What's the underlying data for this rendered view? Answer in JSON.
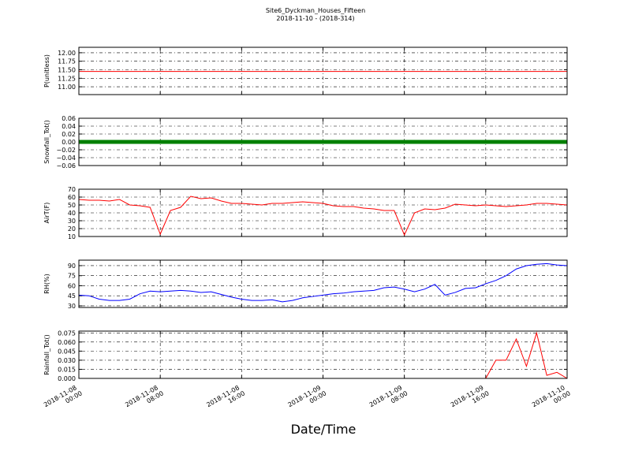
{
  "chart_data": [
    {
      "type": "line",
      "title": "Site6_Dyckman_Houses_Fifteen",
      "subtitle": "2018-11-10 - (2018-314)",
      "ylabel": "P(unitless)",
      "grid": true,
      "xlim": [
        "2018-11-08 00:00",
        "2018-11-10 00:00"
      ],
      "ylim": [
        10.77,
        12.16
      ],
      "yticks": [
        {
          "value": 11,
          "label": "11.00"
        },
        {
          "value": 11.25,
          "label": "11.25"
        },
        {
          "value": 11.5,
          "label": "11.50"
        },
        {
          "value": 11.75,
          "label": "11.75"
        },
        {
          "value": 12,
          "label": "12.00"
        }
      ],
      "x": [
        "2018-11-08 00:00",
        "2018-11-08 01:00",
        "2018-11-08 02:00",
        "2018-11-08 03:00",
        "2018-11-08 04:00",
        "2018-11-08 05:00",
        "2018-11-08 06:00",
        "2018-11-08 07:00",
        "2018-11-08 08:00",
        "2018-11-08 09:00",
        "2018-11-08 10:00",
        "2018-11-08 11:00",
        "2018-11-08 12:00",
        "2018-11-08 13:00",
        "2018-11-08 14:00",
        "2018-11-08 15:00",
        "2018-11-08 16:00",
        "2018-11-08 17:00",
        "2018-11-08 18:00",
        "2018-11-08 19:00",
        "2018-11-08 20:00",
        "2018-11-08 21:00",
        "2018-11-08 22:00",
        "2018-11-08 23:00",
        "2018-11-09 00:00",
        "2018-11-09 01:00",
        "2018-11-09 02:00",
        "2018-11-09 03:00",
        "2018-11-09 04:00",
        "2018-11-09 05:00",
        "2018-11-09 06:00",
        "2018-11-09 07:00",
        "2018-11-09 08:00",
        "2018-11-09 09:00",
        "2018-11-09 10:00",
        "2018-11-09 11:00",
        "2018-11-09 12:00",
        "2018-11-09 13:00",
        "2018-11-09 14:00",
        "2018-11-09 15:00",
        "2018-11-09 16:00",
        "2018-11-09 17:00",
        "2018-11-09 18:00",
        "2018-11-09 19:00",
        "2018-11-09 20:00",
        "2018-11-09 21:00",
        "2018-11-09 22:00",
        "2018-11-09 23:00",
        "2018-11-10 00:00"
      ],
      "series": [
        {
          "color": "#ff0000",
          "width": 1,
          "values": [
            11.45,
            11.45,
            11.45,
            11.45,
            11.45,
            11.45,
            11.45,
            11.45,
            11.45,
            11.45,
            11.45,
            11.45,
            11.45,
            11.45,
            11.45,
            11.45,
            11.45,
            11.45,
            11.45,
            11.45,
            11.45,
            11.45,
            11.45,
            11.45,
            11.45,
            11.45,
            11.45,
            11.45,
            11.45,
            11.45,
            11.45,
            11.45,
            11.45,
            11.45,
            11.45,
            11.45,
            11.45,
            11.45,
            11.45,
            11.45,
            11.45,
            11.45,
            11.45,
            11.45,
            11.45,
            11.45,
            11.45,
            11.45,
            11.45
          ]
        }
      ]
    },
    {
      "type": "line",
      "ylabel": "Snowfall_Tot()",
      "grid": true,
      "xlim": [
        "2018-11-08 00:00",
        "2018-11-10 00:00"
      ],
      "ylim": [
        -0.06,
        0.06
      ],
      "yticks": [
        {
          "value": -0.06,
          "label": "−0.06"
        },
        {
          "value": -0.04,
          "label": "−0.04"
        },
        {
          "value": -0.02,
          "label": "−0.02"
        },
        {
          "value": 0,
          "label": "0.00"
        },
        {
          "value": 0.02,
          "label": "0.02"
        },
        {
          "value": 0.04,
          "label": "0.04"
        },
        {
          "value": 0.06,
          "label": "0.06"
        }
      ],
      "x": [
        "2018-11-08 00:00",
        "2018-11-08 01:00",
        "2018-11-08 02:00",
        "2018-11-08 03:00",
        "2018-11-08 04:00",
        "2018-11-08 05:00",
        "2018-11-08 06:00",
        "2018-11-08 07:00",
        "2018-11-08 08:00",
        "2018-11-08 09:00",
        "2018-11-08 10:00",
        "2018-11-08 11:00",
        "2018-11-08 12:00",
        "2018-11-08 13:00",
        "2018-11-08 14:00",
        "2018-11-08 15:00",
        "2018-11-08 16:00",
        "2018-11-08 17:00",
        "2018-11-08 18:00",
        "2018-11-08 19:00",
        "2018-11-08 20:00",
        "2018-11-08 21:00",
        "2018-11-08 22:00",
        "2018-11-08 23:00",
        "2018-11-09 00:00",
        "2018-11-09 01:00",
        "2018-11-09 02:00",
        "2018-11-09 03:00",
        "2018-11-09 04:00",
        "2018-11-09 05:00",
        "2018-11-09 06:00",
        "2018-11-09 07:00",
        "2018-11-09 08:00",
        "2018-11-09 09:00",
        "2018-11-09 10:00",
        "2018-11-09 11:00",
        "2018-11-09 12:00",
        "2018-11-09 13:00",
        "2018-11-09 14:00",
        "2018-11-09 15:00",
        "2018-11-09 16:00",
        "2018-11-09 17:00",
        "2018-11-09 18:00",
        "2018-11-09 19:00",
        "2018-11-09 20:00",
        "2018-11-09 21:00",
        "2018-11-09 22:00",
        "2018-11-09 23:00",
        "2018-11-10 00:00"
      ],
      "series": [
        {
          "color": "#008000",
          "width": 5,
          "values": [
            0,
            0,
            0,
            0,
            0,
            0,
            0,
            0,
            0,
            0,
            0,
            0,
            0,
            0,
            0,
            0,
            0,
            0,
            0,
            0,
            0,
            0,
            0,
            0,
            0,
            0,
            0,
            0,
            0,
            0,
            0,
            0,
            0,
            0,
            0,
            0,
            0,
            0,
            0,
            0,
            0,
            0,
            0,
            0,
            0,
            0,
            0,
            0,
            0
          ]
        }
      ]
    },
    {
      "type": "line",
      "ylabel": "AirT(F)",
      "grid": true,
      "xlim": [
        "2018-11-08 00:00",
        "2018-11-10 00:00"
      ],
      "ylim": [
        10,
        70
      ],
      "yticks": [
        10,
        20,
        30,
        40,
        50,
        60,
        70
      ],
      "x": [
        "2018-11-08 00:00",
        "2018-11-08 01:00",
        "2018-11-08 02:00",
        "2018-11-08 03:00",
        "2018-11-08 04:00",
        "2018-11-08 05:00",
        "2018-11-08 06:00",
        "2018-11-08 07:00",
        "2018-11-08 08:00",
        "2018-11-08 09:00",
        "2018-11-08 10:00",
        "2018-11-08 11:00",
        "2018-11-08 12:00",
        "2018-11-08 13:00",
        "2018-11-08 14:00",
        "2018-11-08 15:00",
        "2018-11-08 16:00",
        "2018-11-08 17:00",
        "2018-11-08 18:00",
        "2018-11-08 19:00",
        "2018-11-08 20:00",
        "2018-11-08 21:00",
        "2018-11-08 22:00",
        "2018-11-08 23:00",
        "2018-11-09 00:00",
        "2018-11-09 01:00",
        "2018-11-09 02:00",
        "2018-11-09 03:00",
        "2018-11-09 04:00",
        "2018-11-09 05:00",
        "2018-11-09 06:00",
        "2018-11-09 07:00",
        "2018-11-09 08:00",
        "2018-11-09 09:00",
        "2018-11-09 10:00",
        "2018-11-09 11:00",
        "2018-11-09 12:00",
        "2018-11-09 13:00",
        "2018-11-09 14:00",
        "2018-11-09 15:00",
        "2018-11-09 16:00",
        "2018-11-09 17:00",
        "2018-11-09 18:00",
        "2018-11-09 19:00",
        "2018-11-09 20:00",
        "2018-11-09 21:00",
        "2018-11-09 22:00",
        "2018-11-09 23:00",
        "2018-11-10 00:00"
      ],
      "series": [
        {
          "color": "#ff0000",
          "width": 1,
          "values": [
            57,
            56,
            56,
            55,
            57,
            50,
            49,
            47,
            13,
            43,
            47,
            61,
            58,
            59,
            55,
            52,
            52,
            51,
            50,
            52,
            52,
            53,
            54,
            53,
            52,
            49,
            48,
            48,
            46,
            45,
            43,
            43,
            12,
            40,
            45,
            44,
            46,
            51,
            50,
            49,
            50,
            49,
            48,
            49,
            50,
            52,
            52,
            51,
            50
          ]
        }
      ]
    },
    {
      "type": "line",
      "ylabel": "RH(%)",
      "grid": true,
      "xlim": [
        "2018-11-08 00:00",
        "2018-11-10 00:00"
      ],
      "ylim": [
        27.6,
        98.2
      ],
      "yticks": [
        30,
        45,
        60,
        75,
        90
      ],
      "x": [
        "2018-11-08 00:00",
        "2018-11-08 01:00",
        "2018-11-08 02:00",
        "2018-11-08 03:00",
        "2018-11-08 04:00",
        "2018-11-08 05:00",
        "2018-11-08 06:00",
        "2018-11-08 07:00",
        "2018-11-08 08:00",
        "2018-11-08 09:00",
        "2018-11-08 10:00",
        "2018-11-08 11:00",
        "2018-11-08 12:00",
        "2018-11-08 13:00",
        "2018-11-08 14:00",
        "2018-11-08 15:00",
        "2018-11-08 16:00",
        "2018-11-08 17:00",
        "2018-11-08 18:00",
        "2018-11-08 19:00",
        "2018-11-08 20:00",
        "2018-11-08 21:00",
        "2018-11-08 22:00",
        "2018-11-08 23:00",
        "2018-11-09 00:00",
        "2018-11-09 01:00",
        "2018-11-09 02:00",
        "2018-11-09 03:00",
        "2018-11-09 04:00",
        "2018-11-09 05:00",
        "2018-11-09 06:00",
        "2018-11-09 07:00",
        "2018-11-09 08:00",
        "2018-11-09 09:00",
        "2018-11-09 10:00",
        "2018-11-09 11:00",
        "2018-11-09 12:00",
        "2018-11-09 13:00",
        "2018-11-09 14:00",
        "2018-11-09 15:00",
        "2018-11-09 16:00",
        "2018-11-09 17:00",
        "2018-11-09 18:00",
        "2018-11-09 19:00",
        "2018-11-09 20:00",
        "2018-11-09 21:00",
        "2018-11-09 22:00",
        "2018-11-09 23:00",
        "2018-11-10 00:00"
      ],
      "series": [
        {
          "color": "#0000ff",
          "width": 1,
          "values": [
            46,
            45,
            40,
            38,
            38,
            40,
            48,
            52,
            51,
            52,
            53,
            52,
            50,
            51,
            47,
            43,
            40,
            38,
            38,
            39,
            36,
            38,
            42,
            44,
            46,
            48,
            49,
            51,
            52,
            53,
            57,
            58,
            55,
            51,
            55,
            62,
            46,
            50,
            56,
            57,
            63,
            68,
            75,
            85,
            90,
            92,
            93,
            91,
            90
          ]
        }
      ]
    },
    {
      "type": "line",
      "ylabel": "Rainfall_Tot()",
      "xlabel": "Date/Time",
      "grid": true,
      "xlim": [
        "2018-11-08 00:00",
        "2018-11-10 00:00"
      ],
      "ylim": [
        0,
        0.078
      ],
      "yticks": [
        {
          "value": 0,
          "label": "0.000"
        },
        {
          "value": 0.015,
          "label": "0.015"
        },
        {
          "value": 0.03,
          "label": "0.030"
        },
        {
          "value": 0.045,
          "label": "0.045"
        },
        {
          "value": 0.06,
          "label": "0.060"
        },
        {
          "value": 0.075,
          "label": "0.075"
        }
      ],
      "xticks": [
        "2018-11-08 00:00",
        "2018-11-08 08:00",
        "2018-11-08 16:00",
        "2018-11-09 00:00",
        "2018-11-09 08:00",
        "2018-11-09 16:00",
        "2018-11-10 00:00"
      ],
      "x": [
        "2018-11-08 00:00",
        "2018-11-08 01:00",
        "2018-11-08 02:00",
        "2018-11-08 03:00",
        "2018-11-08 04:00",
        "2018-11-08 05:00",
        "2018-11-08 06:00",
        "2018-11-08 07:00",
        "2018-11-08 08:00",
        "2018-11-08 09:00",
        "2018-11-08 10:00",
        "2018-11-08 11:00",
        "2018-11-08 12:00",
        "2018-11-08 13:00",
        "2018-11-08 14:00",
        "2018-11-08 15:00",
        "2018-11-08 16:00",
        "2018-11-08 17:00",
        "2018-11-08 18:00",
        "2018-11-08 19:00",
        "2018-11-08 20:00",
        "2018-11-08 21:00",
        "2018-11-08 22:00",
        "2018-11-08 23:00",
        "2018-11-09 00:00",
        "2018-11-09 01:00",
        "2018-11-09 02:00",
        "2018-11-09 03:00",
        "2018-11-09 04:00",
        "2018-11-09 05:00",
        "2018-11-09 06:00",
        "2018-11-09 07:00",
        "2018-11-09 08:00",
        "2018-11-09 09:00",
        "2018-11-09 10:00",
        "2018-11-09 11:00",
        "2018-11-09 12:00",
        "2018-11-09 13:00",
        "2018-11-09 14:00",
        "2018-11-09 15:00",
        "2018-11-09 16:00",
        "2018-11-09 17:00",
        "2018-11-09 18:00",
        "2018-11-09 19:00",
        "2018-11-09 20:00",
        "2018-11-09 21:00",
        "2018-11-09 22:00",
        "2018-11-09 23:00",
        "2018-11-10 00:00"
      ],
      "series": [
        {
          "color": "#ff0000",
          "width": 1,
          "values": [
            0,
            0,
            0,
            0,
            0,
            0,
            0,
            0,
            0,
            0,
            0,
            0,
            0,
            0,
            0,
            0,
            0,
            0,
            0,
            0,
            0,
            0,
            0,
            0,
            0,
            0,
            0,
            0,
            0,
            0,
            0,
            0,
            0,
            0,
            0,
            0,
            0,
            0,
            0,
            0,
            0,
            0.03,
            0.03,
            0.065,
            0.02,
            0.075,
            0.005,
            0.01,
            0
          ]
        }
      ]
    }
  ]
}
